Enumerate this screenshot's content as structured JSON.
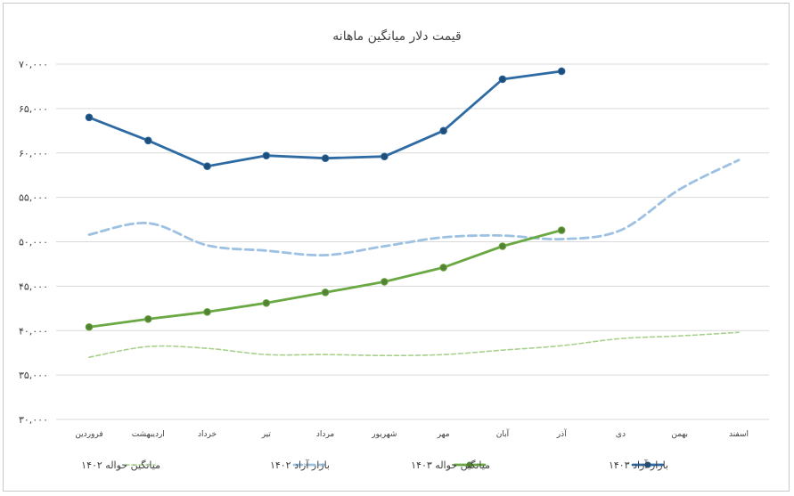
{
  "chart_data": {
    "type": "line",
    "title": "قیمت دلار میانگین ماهانه",
    "xlabel": "",
    "ylabel": "",
    "ylim": [
      30000,
      70000
    ],
    "yticks": [
      30000,
      35000,
      40000,
      45000,
      50000,
      55000,
      60000,
      65000,
      70000
    ],
    "ytick_labels": [
      "۳۰,۰۰۰",
      "۳۵,۰۰۰",
      "۴۰,۰۰۰",
      "۴۵,۰۰۰",
      "۵۰,۰۰۰",
      "۵۵,۰۰۰",
      "۶۰,۰۰۰",
      "۶۵,۰۰۰",
      "۷۰,۰۰۰"
    ],
    "categories": [
      "فروردین",
      "اردیبهشت",
      "خرداد",
      "تیر",
      "مرداد",
      "شهریور",
      "مهر",
      "آبان",
      "آذر",
      "دی",
      "بهمن",
      "اسفند"
    ],
    "grid": true,
    "legend_position": "bottom",
    "series": [
      {
        "name": "بازار آزاد ۱۴۰۳",
        "color": "#2e6aa3",
        "style": "solid-marker",
        "values": [
          64000,
          61400,
          58500,
          59700,
          59400,
          59600,
          62500,
          68300,
          69200,
          null,
          null,
          null
        ]
      },
      {
        "name": "میانگین حواله ۱۴۰۳",
        "color": "#6aa843",
        "style": "solid-marker",
        "values": [
          40400,
          41300,
          42100,
          43100,
          44300,
          45500,
          47100,
          49500,
          51300,
          null,
          null,
          null
        ]
      },
      {
        "name": "بازار آزاد ۱۴۰۲",
        "color": "#9dc1e3",
        "style": "dashed",
        "values": [
          50800,
          52100,
          49600,
          49000,
          48500,
          49500,
          50500,
          50700,
          50300,
          51300,
          55900,
          59200
        ]
      },
      {
        "name": "میانگین حواله ۱۴۰۲",
        "color": "#a9d18e",
        "style": "dotted",
        "values": [
          37000,
          38200,
          38000,
          37300,
          37300,
          37200,
          37300,
          37800,
          38300,
          39100,
          39400,
          39800
        ]
      }
    ]
  }
}
